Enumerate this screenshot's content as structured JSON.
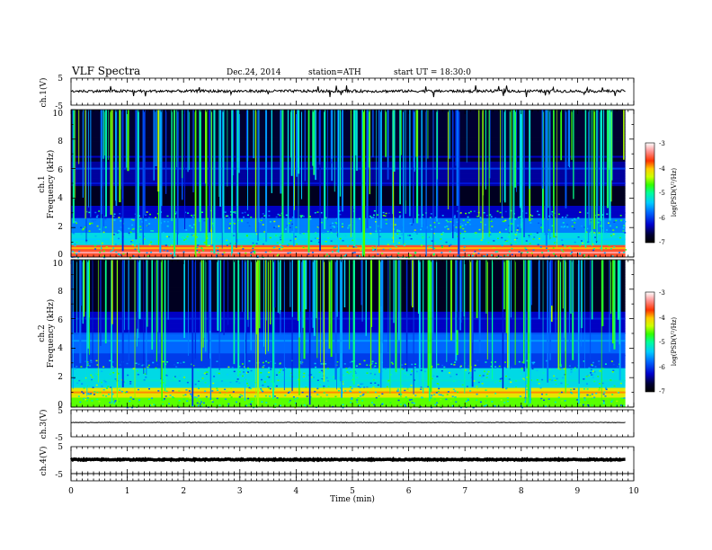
{
  "header": {
    "title": "VLF  Spectra",
    "date": "Dec.24, 2014",
    "station": "station=ATH",
    "start": "start  UT =   18:30:0"
  },
  "colorbar": {
    "label": "log(PSD(V²/Hz)",
    "ticks": [
      "-3",
      "-4",
      "-5",
      "-6",
      "-7"
    ]
  },
  "chart_data": [
    {
      "type": "line",
      "panel": "ch.1",
      "ylabel": "ch.1(V)",
      "ylim": [
        -5,
        5
      ],
      "yticks": [
        "5",
        "-5"
      ],
      "description_values": {
        "baseline": 0.2,
        "noise_amplitude": 0.5,
        "spike_extent": [
          -1.8,
          2.0
        ]
      }
    },
    {
      "type": "heatmap",
      "panel": "ch.1 spectrogram",
      "ylabel_channel": "ch.1",
      "ylabel": "Frequency  (kHz)",
      "ylim": [
        0,
        10
      ],
      "yticks": [
        "10",
        "8",
        "6",
        "4",
        "2",
        "0"
      ],
      "color_scale": "log(PSD(V²/Hz)",
      "clim": [
        -7,
        -3
      ],
      "bands_khz": [
        {
          "f": 0.3,
          "log_psd": -3.3
        },
        {
          "f": 0.6,
          "log_psd": -4.0
        },
        {
          "f": 1.2,
          "log_psd": -5.4
        },
        {
          "f": 2.0,
          "log_psd": -5.7
        },
        {
          "f": 3.0,
          "log_psd": -6.3
        },
        {
          "f": 5.0,
          "log_psd": -6.2
        },
        {
          "f": 6.0,
          "log_psd": -6.0
        },
        {
          "f": 6.8,
          "log_psd": -6.3
        }
      ]
    },
    {
      "type": "heatmap",
      "panel": "ch.2 spectrogram",
      "ylabel_channel": "ch.2",
      "ylabel": "Frequency  (kHz)",
      "ylim": [
        0,
        10
      ],
      "yticks": [
        "10",
        "8",
        "6",
        "4",
        "2",
        "0"
      ],
      "color_scale": "log(PSD(V²/Hz)",
      "clim": [
        -7,
        -3
      ],
      "bands_khz": [
        {
          "f": 1.0,
          "log_psd": -3.9
        },
        {
          "f": 1.8,
          "log_psd": -5.2
        },
        {
          "f": 3.5,
          "log_psd": -6.0
        },
        {
          "f": 4.5,
          "log_psd": -5.6
        },
        {
          "f": 5.0,
          "log_psd": -5.9
        },
        {
          "f": 6.0,
          "log_psd": -6.1
        }
      ]
    },
    {
      "type": "line",
      "panel": "ch.3",
      "ylabel": "ch.3(V)",
      "ylim": [
        -5,
        5
      ],
      "yticks": [
        "5",
        "-5"
      ],
      "description_values": {
        "baseline": 0.3,
        "noise_amplitude": 0.1
      }
    },
    {
      "type": "line",
      "panel": "ch.4",
      "ylabel": "ch.4(V)",
      "ylim": [
        -5,
        5
      ],
      "yticks": [
        "5",
        "-5"
      ],
      "description_values": {
        "baseline": 0.2,
        "noise_amplitude": 0.2
      }
    }
  ],
  "xaxis": {
    "label": "Time  (min)",
    "xlim": [
      0,
      10
    ],
    "ticks": [
      "0",
      "1",
      "2",
      "3",
      "4",
      "5",
      "6",
      "7",
      "8",
      "9",
      "10"
    ],
    "data_end_min": 9.85
  },
  "colors": {
    "axis": "#000000",
    "psd_low": "#000000",
    "psd_mid": "#00ff00",
    "psd_high": "#ffffff"
  }
}
